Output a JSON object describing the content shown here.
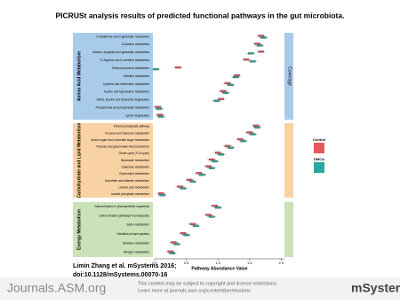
{
  "title": "PICRUSt analysis results of predicted functional pathways in the gut microbiota.",
  "chart_data": {
    "type": "box",
    "xlabel": "Pathway Abundance Value",
    "side_label": "Coverage",
    "groups": [
      {
        "name": "Amino Acid Metabolism",
        "color": "#a9cbea",
        "categories": [
          "D-Glutamine and D-glutamate metabolism",
          "D-Alanine metabolism",
          "Alanine, aspartate and glutamate metabolism",
          "D-Arginine and D-ornithine metabolism",
          "Selenocompound metabolism",
          "Histidine metabolism",
          "Cysteine and methionine metabolism",
          "Taurine and hypotaurine metabolism",
          "Valine, leucine and isoleucine degradation",
          "Phosphonate and phosphinate metabolism",
          "Lysine degradation"
        ]
      },
      {
        "name": "Carbohydrate and Lipid Metabolism",
        "color": "#f9d2a4",
        "categories": [
          "Pentose phosphate pathway",
          "Fructose and mannose metabolism",
          "Amino sugar and nucleotide sugar metabolism",
          "Pentose and glucuronate interconversions",
          "Citrate cycle (TCA cycle)",
          "Butanoate metabolism",
          "Galactose metabolism",
          "Glycerolipid metabolism",
          "Ascorbate and aldarate metabolism",
          "Linoleic acid metabolism",
          "Inositol phosphate metabolism"
        ]
      },
      {
        "name": "Energy Metabolism",
        "color": "#c9e2b8",
        "categories": [
          "Carbon fixation in photosynthetic organisms",
          "Carbon fixation pathways in prokaryotes",
          "Sulfur metabolism",
          "Oxidative phosphorylation",
          "Methane metabolism",
          "Nitrogen metabolism"
        ]
      }
    ],
    "series": [
      {
        "name": "Control",
        "color": "#e8565a",
        "values": [
          1.68,
          1.62,
          1.68,
          1.45,
          0.37,
          1.3,
          1.15,
          1.08,
          1.05,
          0.05,
          0.08,
          1.6,
          1.5,
          1.35,
          1.15,
          1.0,
          0.9,
          0.85,
          0.7,
          0.55,
          0.4,
          0.1,
          0.95,
          0.85,
          0.6,
          0.45,
          0.3,
          0.25
        ]
      },
      {
        "name": "DMCA",
        "color": "#2aa8a0",
        "values": [
          1.72,
          1.66,
          1.52,
          1.55,
          0.02,
          1.28,
          1.2,
          1.12,
          0.98,
          0.07,
          0.1,
          1.62,
          1.55,
          1.4,
          1.2,
          1.05,
          0.95,
          0.9,
          0.75,
          0.6,
          0.45,
          0.12,
          1.0,
          0.9,
          0.65,
          0.5,
          0.35,
          0.28
        ]
      }
    ],
    "xlim": [
      0,
      2.05
    ],
    "xticks": [
      {
        "value": 0,
        "label": "0.0"
      },
      {
        "value": 0.5,
        "label": "0.5"
      },
      {
        "value": 1,
        "label": "1.0"
      },
      {
        "value": 1.5,
        "label": "1.5"
      },
      {
        "value": 2,
        "label": "2.0"
      }
    ]
  },
  "citation": [
    "Limin Zhang et al. mSystems 2016;",
    "doi:10.1128/mSystems.00070-16"
  ],
  "footer": {
    "brand": "Journals.ASM.org",
    "notice": [
      "This content may be subject to copyright and license restrictions.",
      "Learn more at journals.asm.org/content/permissions"
    ],
    "journal": "mSystems"
  }
}
